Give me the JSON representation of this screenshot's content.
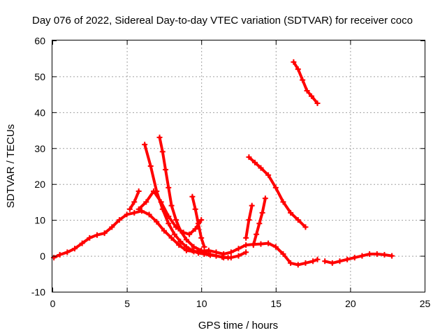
{
  "chart_data": {
    "type": "line",
    "title": "Day 076 of 2022, Sidereal Day-to-day VTEC variation (SDTVAR) for receiver coco",
    "xlabel": "GPS time / hours",
    "ylabel": "SDTVAR / TECUs",
    "xlim": [
      0,
      25
    ],
    "ylim": [
      -10,
      60
    ],
    "xticks": [
      0,
      5,
      10,
      15,
      20,
      25
    ],
    "yticks": [
      -10,
      0,
      10,
      20,
      30,
      40,
      50,
      60
    ],
    "grid": true,
    "color": "#ff0000",
    "series": [
      {
        "name": "s1",
        "x": [
          0.1,
          0.5,
          1.0,
          1.5,
          2.0,
          2.5,
          3.0,
          3.5,
          4.0,
          4.5,
          5.0,
          5.5,
          6.0,
          6.5,
          7.0,
          7.5,
          8.0,
          8.5,
          9.0,
          9.5,
          10.0,
          10.5,
          11.0,
          11.5,
          12.0,
          12.5,
          13.0,
          13.5,
          14.0,
          14.5,
          15.0,
          15.5,
          16.0,
          16.5,
          17.0,
          17.5,
          17.8
        ],
        "y": [
          -0.5,
          0.3,
          1.0,
          2.0,
          3.5,
          5.0,
          5.8,
          6.3,
          8.0,
          10.0,
          11.5,
          12.0,
          12.5,
          11.5,
          9.5,
          7.0,
          5.0,
          3.0,
          1.5,
          1.2,
          1.3,
          1.5,
          1.0,
          0.5,
          1.0,
          2.0,
          3.0,
          3.2,
          3.3,
          3.5,
          2.5,
          0.5,
          -2.0,
          -2.5,
          -2.0,
          -1.5,
          -1.0
        ]
      },
      {
        "name": "s2",
        "x": [
          5.2,
          5.5,
          5.8
        ],
        "y": [
          13.0,
          15.0,
          18.0
        ]
      },
      {
        "name": "s3",
        "x": [
          5.8,
          6.3,
          6.8,
          7.3,
          7.8,
          8.3,
          8.8,
          9.2,
          9.6,
          10.0
        ],
        "y": [
          13.0,
          15.0,
          18.0,
          15.0,
          11.0,
          8.0,
          6.5,
          6.0,
          7.5,
          10.0
        ]
      },
      {
        "name": "s4",
        "x": [
          6.2,
          6.6,
          7.0,
          7.4,
          7.8,
          8.2,
          8.6,
          9.0,
          9.4,
          9.8,
          10.2,
          10.6,
          11.0,
          11.4,
          11.8
        ],
        "y": [
          31.0,
          25.0,
          18.0,
          13.0,
          9.0,
          6.0,
          4.0,
          2.5,
          1.5,
          0.8,
          0.5,
          0.2,
          0.0,
          -0.3,
          -0.5
        ]
      },
      {
        "name": "s5",
        "x": [
          7.2,
          7.4,
          7.6,
          7.8,
          8.0,
          8.3,
          8.6,
          9.0,
          9.5,
          10.0,
          10.5,
          11.0,
          11.5,
          12.0,
          12.5,
          13.0
        ],
        "y": [
          33.0,
          29.0,
          24.0,
          19.0,
          14.0,
          10.0,
          7.0,
          4.5,
          2.5,
          1.5,
          0.5,
          0.0,
          -0.5,
          -0.5,
          0.0,
          1.0
        ]
      },
      {
        "name": "s6",
        "x": [
          9.4,
          9.6,
          9.8,
          10.0,
          10.2
        ],
        "y": [
          16.5,
          13.0,
          9.0,
          5.0,
          2.5
        ]
      },
      {
        "name": "s7",
        "x": [
          13.0,
          13.2,
          13.4
        ],
        "y": [
          5.0,
          10.0,
          14.0
        ]
      },
      {
        "name": "s8",
        "x": [
          13.5,
          13.7,
          13.9,
          14.1,
          14.3
        ],
        "y": [
          3.0,
          6.0,
          9.0,
          12.0,
          16.0
        ]
      },
      {
        "name": "s9",
        "x": [
          13.2,
          13.6,
          14.0,
          14.5,
          15.0,
          15.5,
          16.0,
          16.5,
          17.0
        ],
        "y": [
          27.5,
          26.0,
          24.5,
          22.5,
          19.0,
          15.0,
          12.0,
          10.0,
          8.0
        ]
      },
      {
        "name": "s10",
        "x": [
          16.2,
          16.5,
          16.8,
          17.1,
          17.4,
          17.8
        ],
        "y": [
          54.0,
          52.0,
          49.0,
          46.0,
          44.5,
          42.5
        ]
      },
      {
        "name": "s11",
        "x": [
          18.3,
          18.8,
          19.3,
          19.8,
          20.3,
          20.8,
          21.3,
          21.8,
          22.3,
          22.8
        ],
        "y": [
          -1.5,
          -2.0,
          -1.5,
          -1.0,
          -0.5,
          0.0,
          0.5,
          0.5,
          0.3,
          0.0
        ]
      }
    ]
  }
}
